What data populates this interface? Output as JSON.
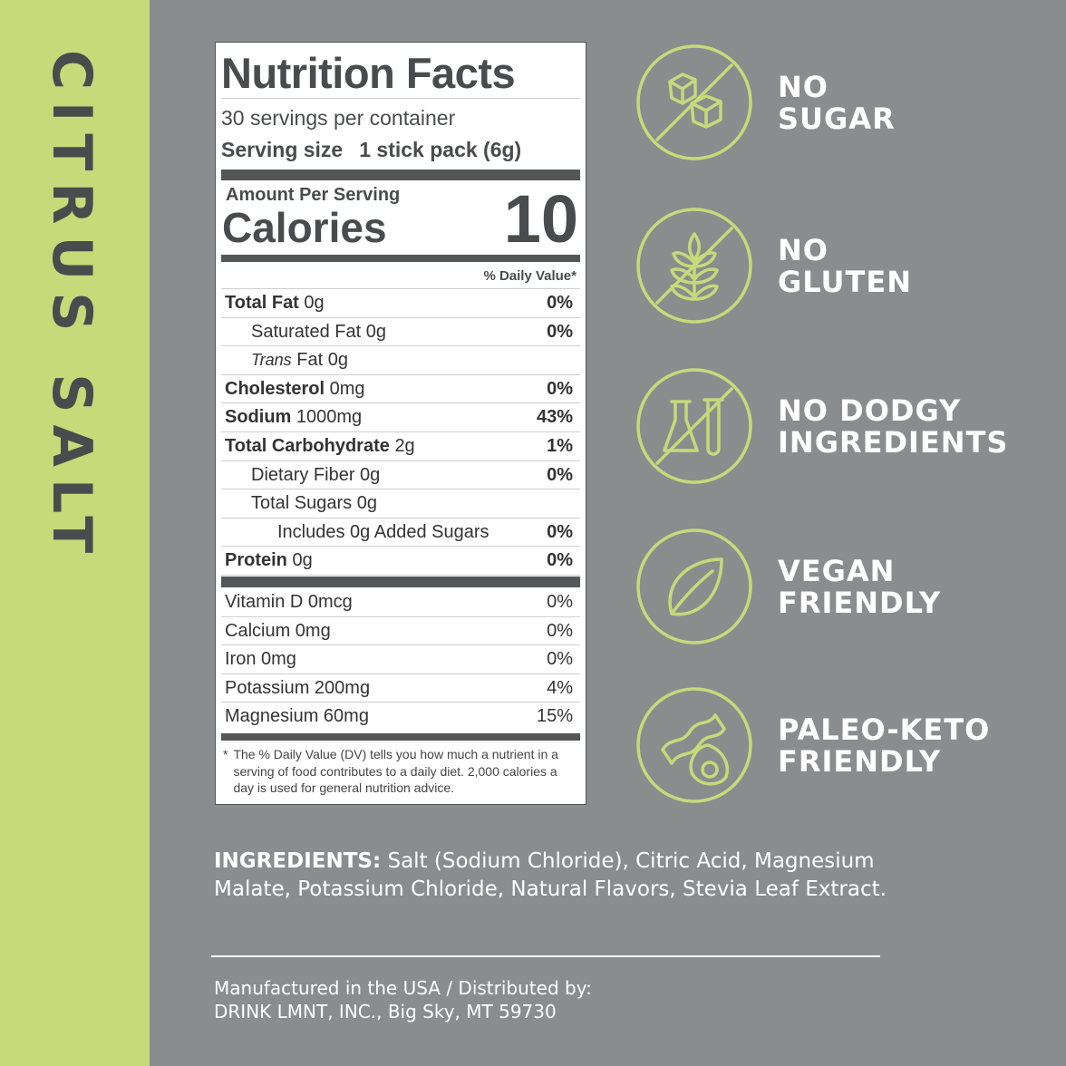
{
  "flavor": "CITRUS SALT",
  "colors": {
    "accent": "#c8d97a",
    "background": "#8b8c8e",
    "text": "#4a4b4d"
  },
  "label": {
    "title": "Nutrition Facts",
    "servings": "30 servings per container",
    "serving_size_label": "Serving size",
    "serving_size_value": "1 stick pack (6g)",
    "amount_per_serving": "Amount Per Serving",
    "calories_label": "Calories",
    "calories_value": "10",
    "daily_value_header": "% Daily Value*",
    "nutrients": [
      {
        "name": "Total Fat",
        "amount": "0g",
        "pct": "0%",
        "bold": true,
        "indent": 0
      },
      {
        "name": "Saturated Fat",
        "amount": "0g",
        "pct": "0%",
        "bold": false,
        "indent": 1
      },
      {
        "italic": "Trans",
        "name": "Fat",
        "amount": "0g",
        "pct": "",
        "bold": false,
        "indent": 1
      },
      {
        "name": "Cholesterol",
        "amount": "0mg",
        "pct": "0%",
        "bold": true,
        "indent": 0
      },
      {
        "name": "Sodium",
        "amount": "1000mg",
        "pct": "43%",
        "bold": true,
        "indent": 0
      },
      {
        "name": "Total Carbohydrate",
        "amount": "2g",
        "pct": "1%",
        "bold": true,
        "indent": 0
      },
      {
        "name": "Dietary Fiber",
        "amount": "0g",
        "pct": "0%",
        "bold": false,
        "indent": 1
      },
      {
        "name": "Total Sugars",
        "amount": "0g",
        "pct": "",
        "bold": false,
        "indent": 1
      },
      {
        "name": "Includes 0g Added Sugars",
        "amount": "",
        "pct": "0%",
        "bold": false,
        "indent": 2
      },
      {
        "name": "Protein",
        "amount": "0g",
        "pct": "0%",
        "bold": true,
        "indent": 0
      }
    ],
    "vitamins": [
      {
        "name": "Vitamin D 0mcg",
        "pct": "0%"
      },
      {
        "name": "Calcium 0mg",
        "pct": "0%"
      },
      {
        "name": "Iron 0mg",
        "pct": "0%"
      },
      {
        "name": "Potassium 200mg",
        "pct": "4%"
      },
      {
        "name": "Magnesium 60mg",
        "pct": "15%"
      }
    ],
    "footnote": "The % Daily Value (DV) tells you how much a nutrient in a serving of food contributes to a daily diet. 2,000 calories a day is used for general nutrition advice.",
    "footnote_mark": "*"
  },
  "claims": [
    {
      "icon": "no-sugar-cubes-icon",
      "line1": "NO",
      "line2": "SUGAR"
    },
    {
      "icon": "no-gluten-wheat-icon",
      "line1": "NO",
      "line2": "GLUTEN"
    },
    {
      "icon": "no-chemicals-flask-icon",
      "line1": "NO DODGY",
      "line2": "INGREDIENTS"
    },
    {
      "icon": "leaf-icon",
      "line1": "VEGAN",
      "line2": "FRIENDLY"
    },
    {
      "icon": "bacon-avocado-icon",
      "line1": "PALEO-KETO",
      "line2": "FRIENDLY"
    }
  ],
  "ingredients": {
    "heading": "INGREDIENTS:",
    "text": " Salt (Sodium Chloride), Citric Acid, Magnesium Malate, Potassium Chloride, Natural Flavors, Stevia Leaf Extract."
  },
  "manufacturer": {
    "line1": "Manufactured in the USA / Distributed by:",
    "line2": "DRINK LMNT, INC., Big Sky, MT 59730"
  }
}
